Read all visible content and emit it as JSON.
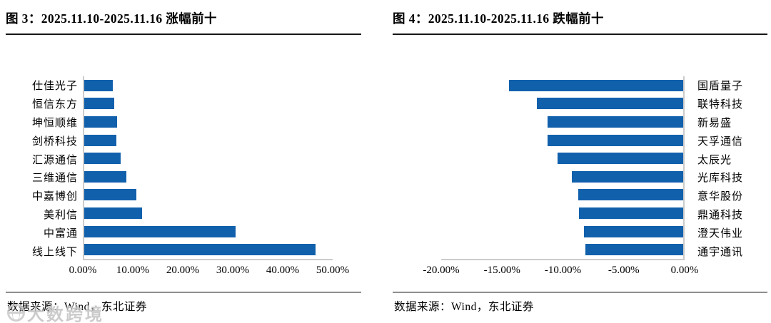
{
  "page": {
    "background": "#ffffff"
  },
  "watermark": {
    "logo_icon": "globe-circle-icon",
    "text": "大数跨境"
  },
  "charts": [
    {
      "title_label": "图  3：2025.11.10-2025.11.16 涨幅前十",
      "footer": "数据来源：Wind，东北证券",
      "chart_data": {
        "type": "bar",
        "orientation": "horizontal",
        "bar_color": "#1160ac",
        "axis_color": "#cbcbcb",
        "grid": false,
        "legend": false,
        "labels_side": "left",
        "categories": [
          "仕佳光子",
          "恒信东方",
          "坤恒顺维",
          "剑桥科技",
          "汇源通信",
          "三维通信",
          "中嘉博创",
          "美利信",
          "中富通",
          "线上线下"
        ],
        "values_pct": [
          5.8,
          6.0,
          6.6,
          6.5,
          7.3,
          8.5,
          10.5,
          11.7,
          30.5,
          46.5
        ],
        "x_ticks": [
          "0.00%",
          "10.00%",
          "20.00%",
          "30.00%",
          "40.00%",
          "50.00%"
        ],
        "xlim": [
          0,
          50
        ],
        "axis_span": 50
      }
    },
    {
      "title_label": "图  4：2025.11.10-2025.11.16 跌幅前十",
      "footer": "数据来源：Wind，东北证券",
      "chart_data": {
        "type": "bar",
        "orientation": "horizontal",
        "bar_color": "#1160ac",
        "axis_color": "#cbcbcb",
        "grid": false,
        "legend": false,
        "labels_side": "right",
        "categories": [
          "国盾量子",
          "联特科技",
          "新易盛",
          "天孚通信",
          "太辰光",
          "光库科技",
          "意华股份",
          "鼎通科技",
          "澄天伟业",
          "通宇通讯"
        ],
        "values_pct": [
          -14.4,
          -12.1,
          -11.2,
          -11.2,
          -10.4,
          -9.2,
          -8.7,
          -8.6,
          -8.2,
          -8.1
        ],
        "x_ticks": [
          "-20.00%",
          "-15.00%",
          "-10.00%",
          "-5.00%",
          "0.00%"
        ],
        "xlim": [
          -20,
          0
        ],
        "axis_span": 20
      }
    }
  ]
}
